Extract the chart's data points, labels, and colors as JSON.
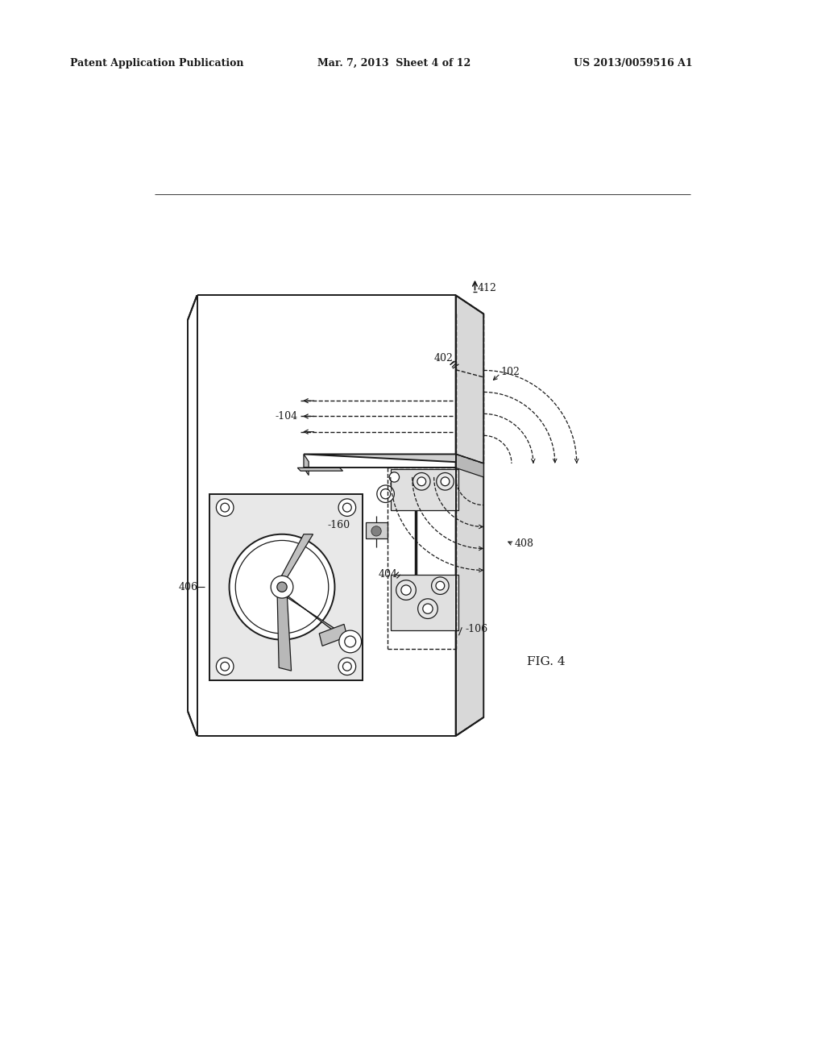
{
  "background_color": "#ffffff",
  "header_left": "Patent Application Publication",
  "header_mid": "Mar. 7, 2013  Sheet 4 of 12",
  "header_right": "US 2013/0059516 A1",
  "fig_label": "FIG. 4",
  "line_color": "#1a1a1a"
}
